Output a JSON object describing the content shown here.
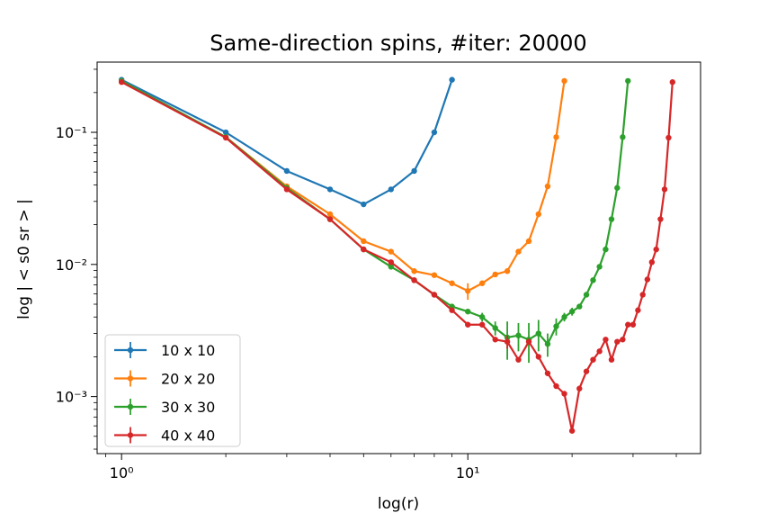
{
  "chart_data": {
    "type": "line",
    "title": "Same-direction spins, #iter: 20000",
    "xlabel": "log(r)",
    "ylabel": "log | < s0 sr > |",
    "xscale": "log",
    "yscale": "log",
    "xlim": [
      0.85,
      47
    ],
    "ylim": [
      0.00037,
      0.34
    ],
    "xticks": [
      {
        "value": 1,
        "label": "10⁰"
      },
      {
        "value": 10,
        "label": "10¹"
      }
    ],
    "yticks": [
      {
        "value": 0.001,
        "label": "10⁻³"
      },
      {
        "value": 0.01,
        "label": "10⁻²"
      },
      {
        "value": 0.1,
        "label": "10⁻¹"
      }
    ],
    "grid": false,
    "legend_position": "lower-left",
    "series": [
      {
        "name": "10 x 10",
        "color": "#1f77b4",
        "x": [
          1,
          2,
          3,
          4,
          5,
          6,
          7,
          8,
          9
        ],
        "y": [
          0.25,
          0.1,
          0.051,
          0.037,
          0.0285,
          0.037,
          0.051,
          0.1,
          0.25
        ],
        "yerr": [
          0,
          0,
          0,
          0,
          0.0008,
          0,
          0,
          0,
          0
        ]
      },
      {
        "name": "20 x 20",
        "color": "#ff7f0e",
        "x": [
          1,
          2,
          3,
          4,
          5,
          6,
          7,
          8,
          9,
          10,
          11,
          12,
          13,
          14,
          15,
          16,
          17,
          18,
          19
        ],
        "y": [
          0.245,
          0.092,
          0.039,
          0.024,
          0.015,
          0.0125,
          0.0089,
          0.0083,
          0.0072,
          0.0063,
          0.0072,
          0.0084,
          0.0089,
          0.0125,
          0.015,
          0.024,
          0.039,
          0.092,
          0.245
        ],
        "yerr": [
          0,
          0,
          0,
          0,
          0,
          0,
          0,
          0,
          0,
          0.0009,
          0,
          0,
          0,
          0,
          0,
          0,
          0,
          0,
          0
        ]
      },
      {
        "name": "30 x 30",
        "color": "#2ca02c",
        "x": [
          1,
          2,
          3,
          4,
          5,
          6,
          7,
          8,
          9,
          10,
          11,
          12,
          13,
          14,
          15,
          16,
          17,
          18,
          19,
          20,
          21,
          22,
          23,
          24,
          25,
          26,
          27,
          28,
          29
        ],
        "y": [
          0.245,
          0.092,
          0.038,
          0.022,
          0.013,
          0.0096,
          0.0076,
          0.0059,
          0.0048,
          0.0044,
          0.004,
          0.0033,
          0.0028,
          0.0029,
          0.0027,
          0.003,
          0.0025,
          0.0034,
          0.004,
          0.0044,
          0.0048,
          0.0059,
          0.0076,
          0.0096,
          0.013,
          0.022,
          0.038,
          0.092,
          0.245
        ],
        "yerr": [
          0,
          0,
          0,
          0,
          0,
          0,
          0,
          0.0002,
          0.0002,
          0.0002,
          0.0003,
          0.0004,
          0.0009,
          0.0007,
          0.0009,
          0.0008,
          0.0005,
          0.0005,
          0.0003,
          0.0003,
          0.0002,
          0.0002,
          0,
          0,
          0,
          0,
          0,
          0,
          0
        ]
      },
      {
        "name": "40 x 40",
        "color": "#d62728",
        "x": [
          1,
          2,
          3,
          4,
          5,
          6,
          7,
          8,
          9,
          10,
          11,
          12,
          13,
          14,
          15,
          16,
          17,
          18,
          19,
          20,
          21,
          22,
          23,
          24,
          25,
          26,
          27,
          28,
          29,
          30,
          31,
          32,
          33,
          34,
          35,
          36,
          37,
          38,
          39
        ],
        "y": [
          0.24,
          0.091,
          0.037,
          0.022,
          0.013,
          0.0104,
          0.0076,
          0.0059,
          0.0045,
          0.0035,
          0.0035,
          0.0027,
          0.0026,
          0.0019,
          0.0026,
          0.002,
          0.0015,
          0.0012,
          0.00105,
          0.00055,
          0.00115,
          0.00155,
          0.0019,
          0.0022,
          0.0027,
          0.0019,
          0.0026,
          0.0027,
          0.0035,
          0.0035,
          0.0045,
          0.0059,
          0.0077,
          0.0104,
          0.013,
          0.022,
          0.037,
          0.091,
          0.24
        ],
        "yerr": [
          0,
          0,
          0,
          0,
          0,
          0,
          0,
          0,
          0,
          0,
          0,
          0,
          0.0003,
          0,
          0,
          0,
          0,
          0,
          0,
          0,
          0,
          0,
          0,
          0,
          0,
          0,
          0,
          0,
          0,
          0,
          0,
          0,
          0,
          0,
          0,
          0,
          0,
          0,
          0
        ]
      }
    ]
  }
}
